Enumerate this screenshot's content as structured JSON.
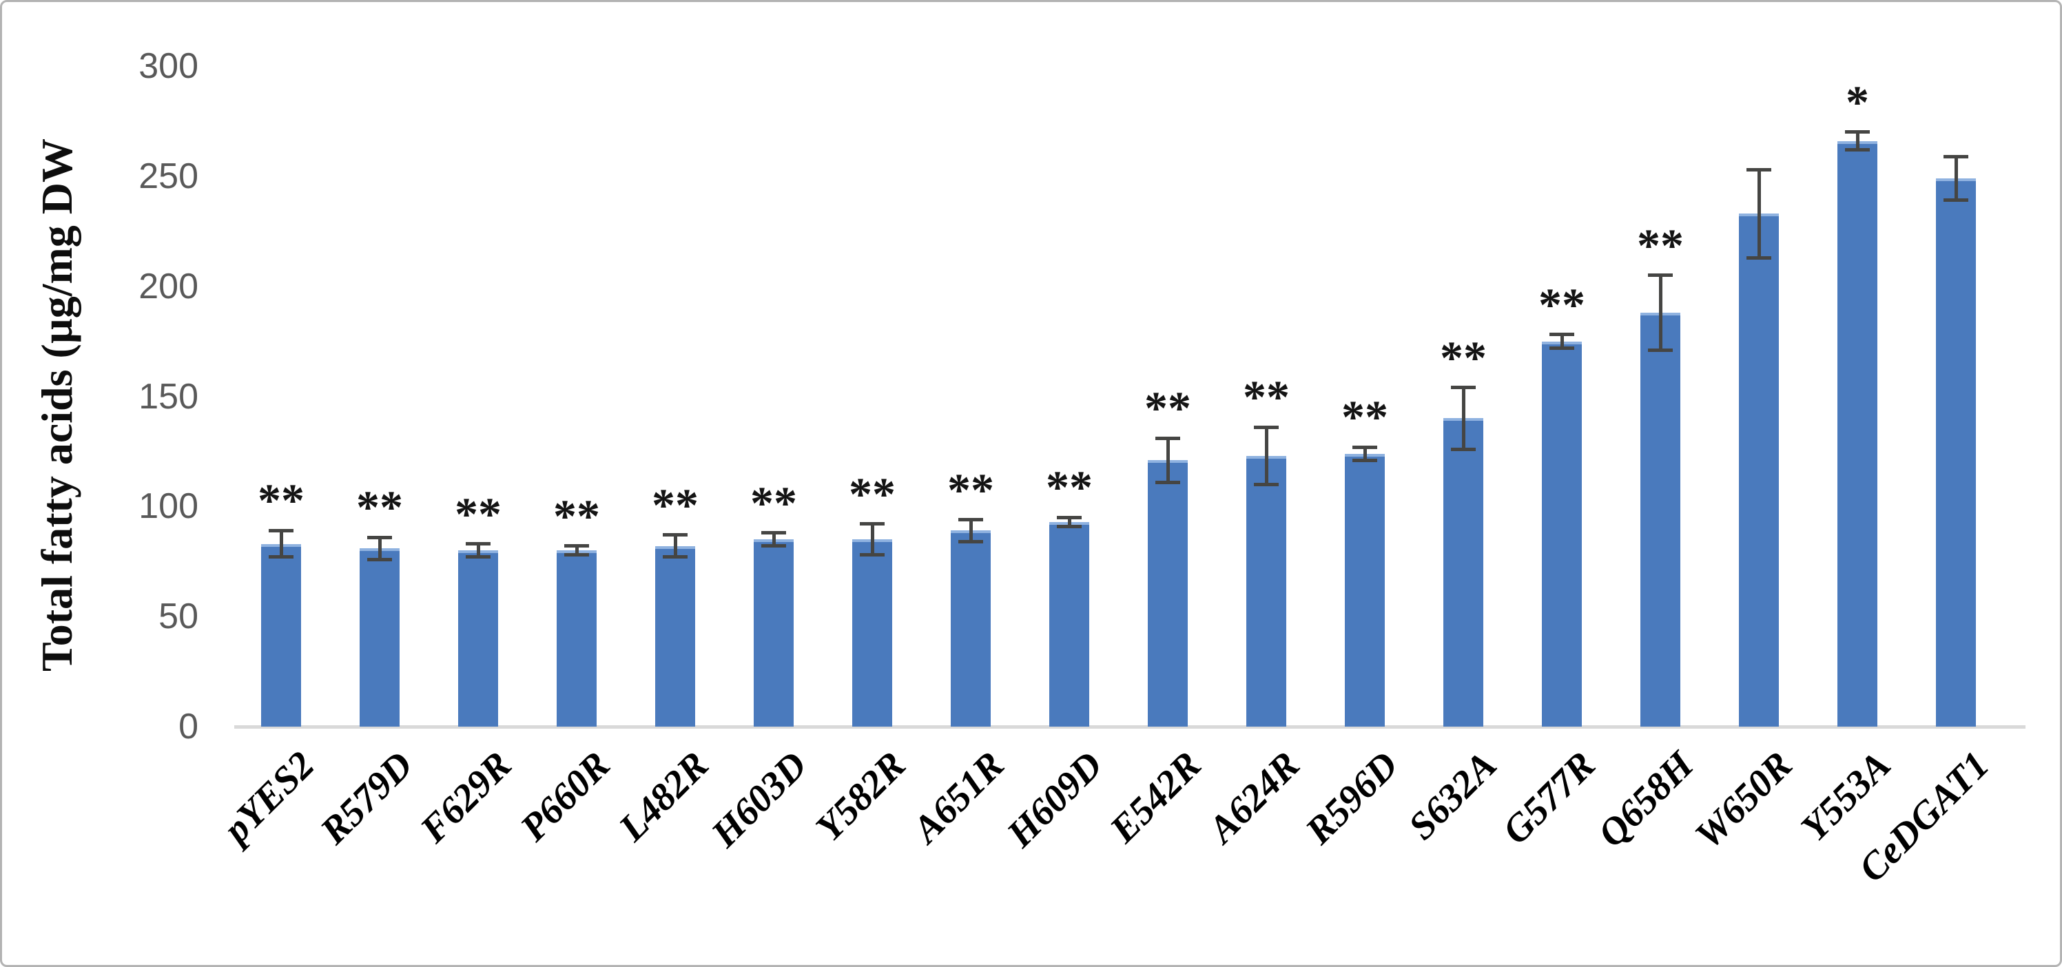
{
  "figure": {
    "background": "#ffffff",
    "border_color": "#b3b3b3"
  },
  "chart_data": {
    "type": "bar",
    "title": "",
    "xlabel": "",
    "ylabel": "Total fatty acids (µg/mg DW",
    "ylim": [
      0,
      300
    ],
    "yticks": [
      0,
      50,
      100,
      150,
      200,
      250,
      300
    ],
    "grid": false,
    "legend_position": "none",
    "categories": [
      "pYES2",
      "R579D",
      "F629R",
      "P660R",
      "L482R",
      "H603D",
      "Y582R",
      "A651R",
      "H609D",
      "E542R",
      "A624R",
      "R596D",
      "S632A",
      "G577R",
      "Q658H",
      "W650R",
      "Y553A",
      "CeDGAT1"
    ],
    "series": [
      {
        "name": "Total fatty acids (µg/mg DW)",
        "values": [
          83,
          81,
          80,
          80,
          82,
          85,
          85,
          89,
          93,
          121,
          123,
          124,
          140,
          175,
          188,
          233,
          266,
          249
        ],
        "errors": [
          6,
          5,
          3,
          2,
          5,
          3,
          7,
          5,
          2,
          10,
          13,
          3,
          14,
          3,
          17,
          20,
          4,
          10
        ],
        "significance": [
          "**",
          "**",
          "**",
          "**",
          "**",
          "**",
          "**",
          "**",
          "**",
          "**",
          "**",
          "**",
          "**",
          "**",
          "**",
          "",
          "*",
          ""
        ]
      }
    ],
    "colors": {
      "bar": "#4a7abd",
      "bar_top_highlight": "#8fb2e0",
      "error_bar": "#454543",
      "axis_line": "#d9d9d9",
      "tick_label": "#595959",
      "category_label": "#000000",
      "significance_marker": "#141414"
    }
  }
}
